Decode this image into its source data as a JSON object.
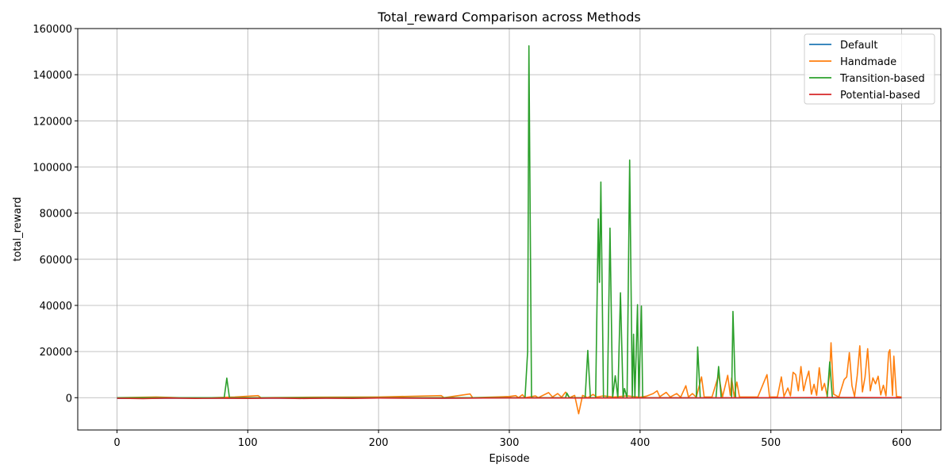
{
  "chart_data": {
    "type": "line",
    "title": "Total_reward Comparison across Methods",
    "xlabel": "Episode",
    "ylabel": "total_reward",
    "xlim": [
      -30,
      630
    ],
    "ylim": [
      -14000,
      160000
    ],
    "xticks": [
      0,
      100,
      200,
      300,
      400,
      500,
      600
    ],
    "yticks": [
      0,
      20000,
      40000,
      60000,
      80000,
      100000,
      120000,
      140000,
      160000
    ],
    "grid": true,
    "legend_position": "top-right",
    "series": [
      {
        "name": "Default",
        "color": "#1f77b4",
        "points": [
          [
            0,
            -300
          ],
          [
            50,
            -200
          ],
          [
            100,
            -250
          ],
          [
            150,
            -200
          ],
          [
            200,
            -150
          ],
          [
            250,
            -200
          ],
          [
            300,
            -100
          ],
          [
            350,
            -150
          ],
          [
            400,
            -100
          ],
          [
            450,
            -150
          ],
          [
            500,
            -100
          ],
          [
            550,
            -120
          ],
          [
            600,
            -100
          ]
        ]
      },
      {
        "name": "Handmade",
        "color": "#ff7f0e",
        "points": [
          [
            0,
            0
          ],
          [
            30,
            300
          ],
          [
            60,
            -200
          ],
          [
            90,
            300
          ],
          [
            108,
            900
          ],
          [
            110,
            0
          ],
          [
            150,
            200
          ],
          [
            200,
            300
          ],
          [
            248,
            900
          ],
          [
            250,
            0
          ],
          [
            270,
            1600
          ],
          [
            272,
            0
          ],
          [
            300,
            500
          ],
          [
            305,
            900
          ],
          [
            307,
            0
          ],
          [
            310,
            1300
          ],
          [
            312,
            0
          ],
          [
            320,
            800
          ],
          [
            322,
            0
          ],
          [
            330,
            2200
          ],
          [
            333,
            300
          ],
          [
            337,
            1800
          ],
          [
            340,
            200
          ],
          [
            343,
            2400
          ],
          [
            346,
            0
          ],
          [
            350,
            1000
          ],
          [
            353,
            -7000
          ],
          [
            356,
            1000
          ],
          [
            360,
            0
          ],
          [
            364,
            1400
          ],
          [
            367,
            300
          ],
          [
            372,
            800
          ],
          [
            380,
            300
          ],
          [
            390,
            800
          ],
          [
            400,
            200
          ],
          [
            405,
            700
          ],
          [
            410,
            1800
          ],
          [
            413,
            3000
          ],
          [
            415,
            400
          ],
          [
            420,
            2300
          ],
          [
            423,
            300
          ],
          [
            428,
            1800
          ],
          [
            431,
            200
          ],
          [
            435,
            5200
          ],
          [
            437,
            300
          ],
          [
            440,
            1800
          ],
          [
            443,
            200
          ],
          [
            447,
            9000
          ],
          [
            449,
            300
          ],
          [
            455,
            300
          ],
          [
            460,
            9800
          ],
          [
            463,
            300
          ],
          [
            467,
            9700
          ],
          [
            469,
            1000
          ],
          [
            470,
            8500
          ],
          [
            472,
            400
          ],
          [
            474,
            6800
          ],
          [
            476,
            300
          ],
          [
            490,
            300
          ],
          [
            497,
            10000
          ],
          [
            499,
            300
          ],
          [
            505,
            300
          ],
          [
            508,
            9000
          ],
          [
            510,
            500
          ],
          [
            513,
            4200
          ],
          [
            515,
            800
          ],
          [
            517,
            11000
          ],
          [
            519,
            10000
          ],
          [
            521,
            3000
          ],
          [
            523,
            13500
          ],
          [
            525,
            3000
          ],
          [
            527,
            7800
          ],
          [
            529,
            11500
          ],
          [
            531,
            1500
          ],
          [
            533,
            5800
          ],
          [
            535,
            1000
          ],
          [
            537,
            13000
          ],
          [
            539,
            3200
          ],
          [
            541,
            6200
          ],
          [
            543,
            800
          ],
          [
            545,
            11000
          ],
          [
            546,
            23800
          ],
          [
            548,
            1500
          ],
          [
            552,
            300
          ],
          [
            556,
            7800
          ],
          [
            558,
            9000
          ],
          [
            560,
            19500
          ],
          [
            562,
            5200
          ],
          [
            564,
            500
          ],
          [
            566,
            9500
          ],
          [
            568,
            22500
          ],
          [
            570,
            2500
          ],
          [
            572,
            9000
          ],
          [
            574,
            21200
          ],
          [
            576,
            3000
          ],
          [
            578,
            8600
          ],
          [
            580,
            6000
          ],
          [
            582,
            9300
          ],
          [
            584,
            1200
          ],
          [
            586,
            5400
          ],
          [
            588,
            800
          ],
          [
            590,
            19500
          ],
          [
            591,
            20800
          ],
          [
            593,
            1000
          ],
          [
            594,
            18000
          ],
          [
            596,
            500
          ],
          [
            600,
            300
          ]
        ]
      },
      {
        "name": "Transition-based",
        "color": "#2ca02c",
        "points": [
          [
            0,
            0
          ],
          [
            82,
            0
          ],
          [
            84,
            8500
          ],
          [
            86,
            0
          ],
          [
            312,
            0
          ],
          [
            314,
            20000
          ],
          [
            315,
            152500
          ],
          [
            317,
            0
          ],
          [
            343,
            0
          ],
          [
            344,
            2000
          ],
          [
            346,
            0
          ],
          [
            358,
            0
          ],
          [
            360,
            20500
          ],
          [
            362,
            0
          ],
          [
            366,
            0
          ],
          [
            368,
            77500
          ],
          [
            369,
            50000
          ],
          [
            370,
            93500
          ],
          [
            372,
            0
          ],
          [
            375,
            0
          ],
          [
            377,
            73500
          ],
          [
            379,
            0
          ],
          [
            381,
            9500
          ],
          [
            383,
            0
          ],
          [
            385,
            45500
          ],
          [
            387,
            0
          ],
          [
            388,
            4000
          ],
          [
            390,
            0
          ],
          [
            392,
            103000
          ],
          [
            394,
            0
          ],
          [
            395,
            27500
          ],
          [
            396,
            0
          ],
          [
            398,
            40300
          ],
          [
            399,
            0
          ],
          [
            401,
            39700
          ],
          [
            402,
            0
          ],
          [
            443,
            0
          ],
          [
            444,
            22000
          ],
          [
            446,
            0
          ],
          [
            458,
            0
          ],
          [
            460,
            13500
          ],
          [
            462,
            0
          ],
          [
            470,
            0
          ],
          [
            471,
            37400
          ],
          [
            473,
            0
          ],
          [
            543,
            0
          ],
          [
            545,
            15500
          ],
          [
            547,
            0
          ],
          [
            600,
            0
          ]
        ]
      },
      {
        "name": "Potential-based",
        "color": "#d62728",
        "points": [
          [
            0,
            -200
          ],
          [
            20,
            -400
          ],
          [
            40,
            -150
          ],
          [
            60,
            -300
          ],
          [
            80,
            -200
          ],
          [
            100,
            -300
          ],
          [
            120,
            -150
          ],
          [
            140,
            -350
          ],
          [
            160,
            -200
          ],
          [
            180,
            -300
          ],
          [
            200,
            -150
          ],
          [
            250,
            -200
          ],
          [
            300,
            -100
          ],
          [
            350,
            -150
          ],
          [
            400,
            -100
          ],
          [
            450,
            -50
          ],
          [
            500,
            0
          ],
          [
            550,
            100
          ],
          [
            600,
            0
          ]
        ]
      }
    ]
  }
}
